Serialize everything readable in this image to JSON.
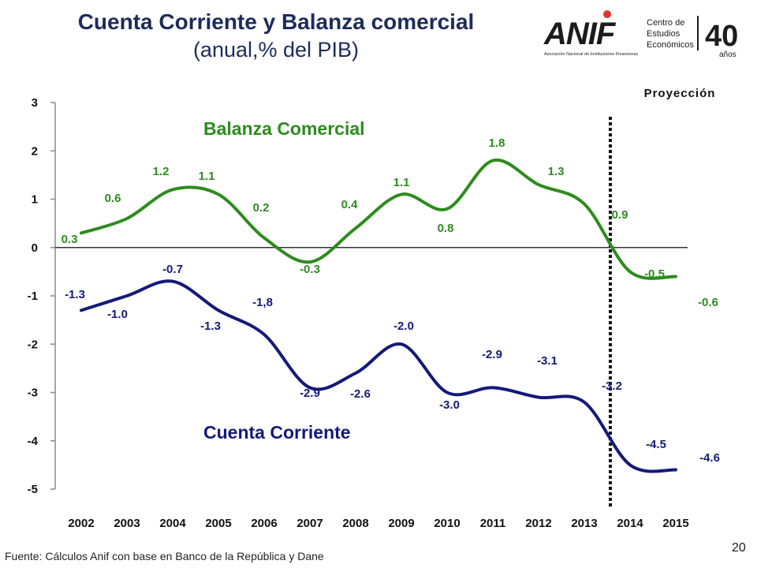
{
  "header": {
    "title": "Cuenta Corriente y Balanza comercial",
    "subtitle": "(anual,% del PIB)"
  },
  "logo": {
    "brand": "ANIF",
    "line1": "Centro de",
    "line2": "Estudios",
    "line3": "Económicos",
    "tagline": "Asociación Nacional de Instituciones Financieras",
    "anniversary": "40",
    "anniversary_sub": "años",
    "color_dark": "#1c1c1c",
    "color_accent": "#e5322d"
  },
  "chart_data": {
    "type": "line",
    "categories": [
      "2002",
      "2003",
      "2004",
      "2005",
      "2006",
      "2007",
      "2008",
      "2009",
      "2010",
      "2011",
      "2012",
      "2013",
      "2014",
      "2015"
    ],
    "ylim": [
      -5,
      3
    ],
    "yticks": [
      "3",
      "2",
      "1",
      "0",
      "-1",
      "-2",
      "-3",
      "-4",
      "-5"
    ],
    "projection_label": "Proyección",
    "projection_after": "2013",
    "series": [
      {
        "name": "Balanza Comercial",
        "color": "#2e8b1e",
        "values": [
          0.3,
          0.6,
          1.2,
          1.1,
          0.2,
          -0.3,
          0.4,
          1.1,
          0.8,
          1.8,
          1.3,
          0.9,
          -0.5,
          -0.6
        ],
        "labels": [
          "0.3",
          "0.6",
          "1.2",
          "1.1",
          "0.2",
          "-0.3",
          "0.4",
          "1.1",
          "0.8",
          "1.8",
          "1.3",
          "0.9",
          "-0.5",
          "-0.6"
        ]
      },
      {
        "name": "Cuenta Corriente",
        "color": "#141a78",
        "values": [
          -1.3,
          -1.0,
          -0.7,
          -1.3,
          -1.8,
          -2.9,
          -2.6,
          -2.0,
          -3.0,
          -2.9,
          -3.1,
          -3.2,
          -4.5,
          -4.6
        ],
        "labels": [
          "-1.3",
          "-1.0",
          "-0.7",
          "-1.3",
          "-1,8",
          "-2.9",
          "-2.6",
          "-2.0",
          "-3.0",
          "-2.9",
          "-3.1",
          "-3.2",
          "-4.5",
          "-4.6"
        ]
      }
    ]
  },
  "footer": {
    "source": "Fuente: Cálculos Anif con base en Banco de la República y Dane",
    "page_number": "20"
  }
}
